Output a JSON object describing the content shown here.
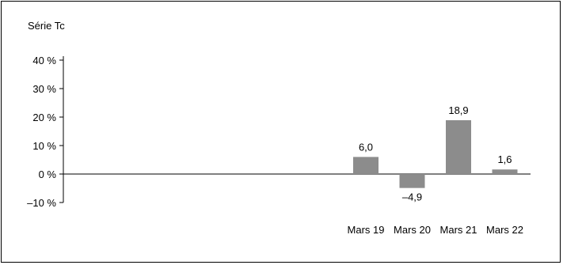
{
  "chart_data": {
    "type": "bar",
    "title": "Série Tc",
    "categories": [
      "Mars 19",
      "Mars 20",
      "Mars 21",
      "Mars 22"
    ],
    "values": [
      6.0,
      -4.9,
      18.9,
      1.6
    ],
    "value_labels": [
      "6,0",
      "–4,9",
      "18,9",
      "1,6"
    ],
    "ylim": [
      -10,
      40
    ],
    "yticks": [
      40,
      30,
      20,
      10,
      0,
      -10
    ],
    "ytick_labels": [
      "40 %",
      "30 %",
      "20 %",
      "10 %",
      "0 %",
      "–10 %"
    ],
    "bar_color": "#8c8c8c",
    "grid": false,
    "legend": "none"
  }
}
